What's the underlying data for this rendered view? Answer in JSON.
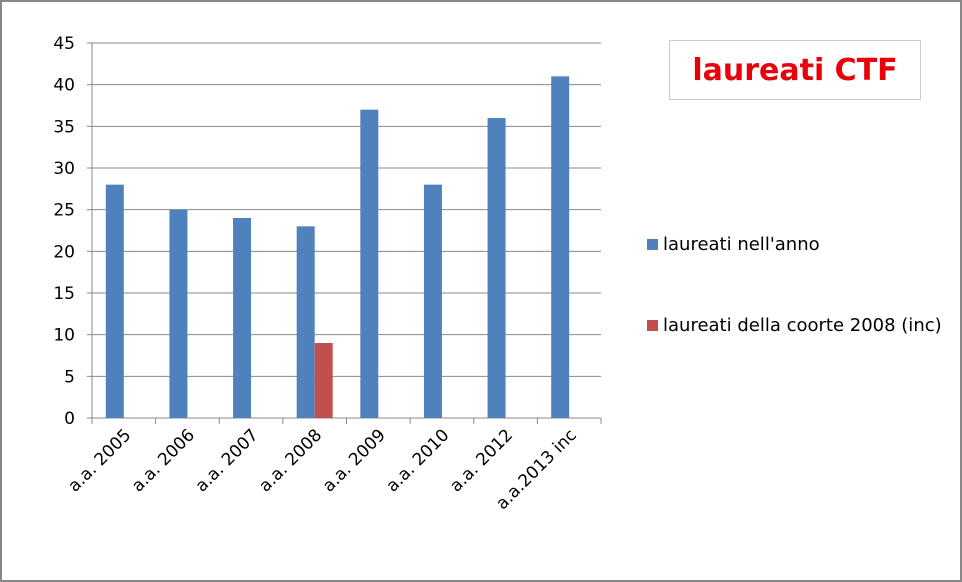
{
  "chart_data": {
    "type": "bar",
    "title": "laureati CTF",
    "categories": [
      "a.a. 2005",
      "a.a. 2006",
      "a.a. 2007",
      "a.a. 2008",
      "a.a. 2009",
      "a.a. 2010",
      "a.a. 2012",
      "a.a.2013 inc"
    ],
    "series": [
      {
        "name": "laureati nell'anno",
        "color": "#4f81bd",
        "values": [
          28,
          25,
          24,
          23,
          37,
          28,
          36,
          41
        ]
      },
      {
        "name": "laureati della coorte 2008 (inc)",
        "color": "#c0504d",
        "values": [
          null,
          null,
          null,
          9,
          null,
          null,
          null,
          null
        ]
      }
    ],
    "ylim": [
      0,
      45
    ],
    "yticks": [
      0,
      5,
      10,
      15,
      20,
      25,
      30,
      35,
      40,
      45
    ],
    "grid": true,
    "legend": "right"
  }
}
